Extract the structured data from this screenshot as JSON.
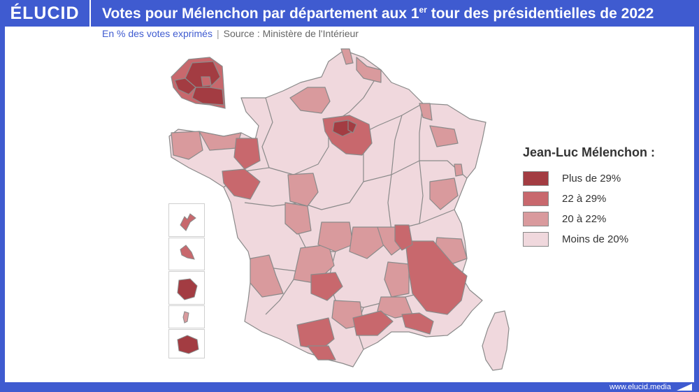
{
  "header": {
    "logo": "ÉLUCID",
    "title_main": "Votes pour Mélenchon par département aux 1",
    "title_sup": "er",
    "title_end": " tour des présidentielles de 2022"
  },
  "subtitle": {
    "unit": "En % des votes exprimés",
    "separator": "|",
    "source": "Source : Ministère de l'Intérieur"
  },
  "legend": {
    "title": "Jean-Luc Mélenchon :",
    "items": [
      {
        "label": "Plus de 29%",
        "color": "#a33c42"
      },
      {
        "label": "22 à 29%",
        "color": "#c8686d"
      },
      {
        "label": "20 à 22%",
        "color": "#d99a9d"
      },
      {
        "label": "Moins de 20%",
        "color": "#f0d8dd"
      }
    ]
  },
  "footer": {
    "site": "www.elucid.media"
  },
  "map": {
    "border_color": "#8a8a8a",
    "classes": [
      "over_29",
      "22_29",
      "20_22",
      "under_20"
    ]
  }
}
